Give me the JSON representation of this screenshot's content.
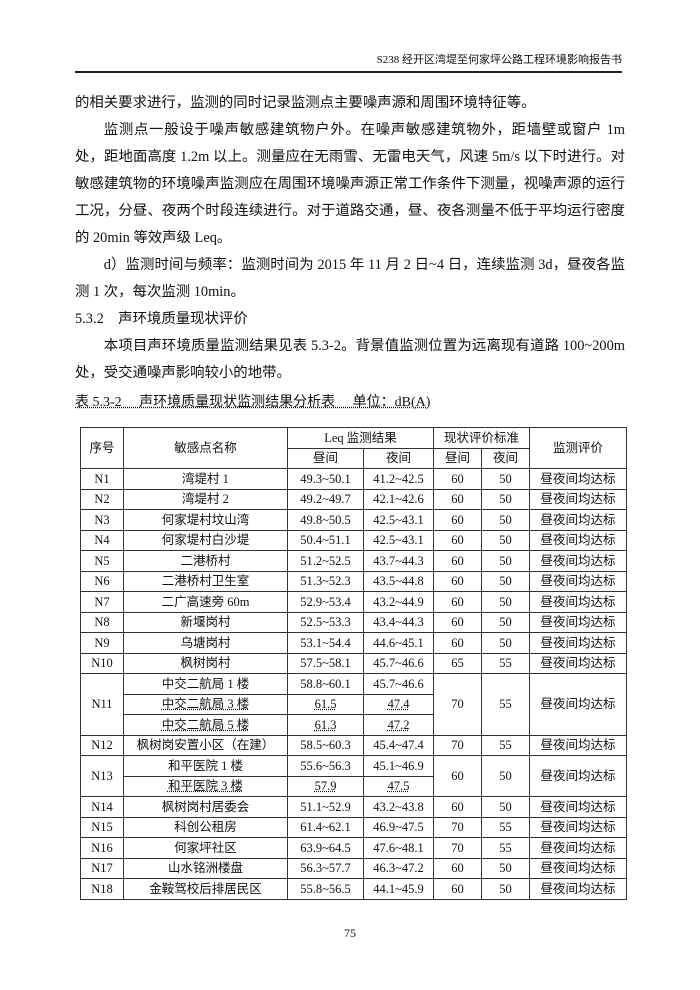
{
  "header": {
    "title": "S238 经开区湾堤至何家坪公路工程环境影响报告书"
  },
  "paragraphs": [
    "的相关要求进行，监测的同时记录监测点主要噪声源和周围环境特征等。",
    "监测点一般设于噪声敏感建筑物户外。在噪声敏感建筑物外，距墙壁或窗户 1m 处，距地面高度 1.2m 以上。测量应在无雨雪、无雷电天气，风速 5m/s 以下时进行。对敏感建筑物的环境噪声监测应在周围环境噪声源正常工作条件下测量，视噪声源的运行工况，分昼、夜两个时段连续进行。对于道路交通，昼、夜各测量不低于平均运行密度的 20min 等效声级 Leq。",
    "d）监测时间与频率：监测时间为 2015 年 11 月 2 日~4 日，连续监测 3d，昼夜各监测 1 次，每次监测 10min。",
    "本项目声环境质量监测结果见表 5.3-2。背景值监测位置为远离现有道路 100~200m 处，受交通噪声影响较小的地带。"
  ],
  "section_heading": "5.3.2　声环境质量现状评价",
  "table": {
    "caption": "表 5.3-2　 声环境质量现状监测结果分析表　 单位：dB(A)",
    "headers": {
      "no": "序号",
      "name": "敏感点名称",
      "leq": "Leq 监测结果",
      "std": "现状评价标准",
      "eval": "监测评价",
      "day": "昼间",
      "night": "夜间"
    },
    "rows": [
      {
        "id": "N1",
        "sub": [
          {
            "name": "湾堤村 1",
            "day": "49.3~50.1",
            "night": "41.2~42.5"
          }
        ],
        "std_day": "60",
        "std_night": "50",
        "eval": "昼夜间均达标"
      },
      {
        "id": "N2",
        "sub": [
          {
            "name": "湾堤村 2",
            "day": "49.2~49.7",
            "night": "42.1~42.6"
          }
        ],
        "std_day": "60",
        "std_night": "50",
        "eval": "昼夜间均达标"
      },
      {
        "id": "N3",
        "sub": [
          {
            "name": "何家堤村坟山湾",
            "day": "49.8~50.5",
            "night": "42.5~43.1"
          }
        ],
        "std_day": "60",
        "std_night": "50",
        "eval": "昼夜间均达标"
      },
      {
        "id": "N4",
        "sub": [
          {
            "name": "何家堤村白沙堤",
            "day": "50.4~51.1",
            "night": "42.5~43.1"
          }
        ],
        "std_day": "60",
        "std_night": "50",
        "eval": "昼夜间均达标"
      },
      {
        "id": "N5",
        "sub": [
          {
            "name": "二港桥村",
            "day": "51.2~52.5",
            "night": "43.7~44.3"
          }
        ],
        "std_day": "60",
        "std_night": "50",
        "eval": "昼夜间均达标"
      },
      {
        "id": "N6",
        "sub": [
          {
            "name": "二港桥村卫生室",
            "day": "51.3~52.3",
            "night": "43.5~44.8"
          }
        ],
        "std_day": "60",
        "std_night": "50",
        "eval": "昼夜间均达标"
      },
      {
        "id": "N7",
        "sub": [
          {
            "name": "二广高速旁 60m",
            "day": "52.9~53.4",
            "night": "43.2~44.9"
          }
        ],
        "std_day": "60",
        "std_night": "50",
        "eval": "昼夜间均达标"
      },
      {
        "id": "N8",
        "sub": [
          {
            "name": "新堰岗村",
            "day": "52.5~53.3",
            "night": "43.4~44.3"
          }
        ],
        "std_day": "60",
        "std_night": "50",
        "eval": "昼夜间均达标"
      },
      {
        "id": "N9",
        "sub": [
          {
            "name": "乌塘岗村",
            "day": "53.1~54.4",
            "night": "44.6~45.1"
          }
        ],
        "std_day": "60",
        "std_night": "50",
        "eval": "昼夜间均达标"
      },
      {
        "id": "N10",
        "sub": [
          {
            "name": "枫树岗村",
            "day": "57.5~58.1",
            "night": "45.7~46.6"
          }
        ],
        "std_day": "65",
        "std_night": "55",
        "eval": "昼夜间均达标"
      },
      {
        "id": "N11",
        "sub": [
          {
            "name": "中交二航局 1 楼",
            "day": "58.8~60.1",
            "night": "45.7~46.6"
          },
          {
            "name": "中交二航局 3 楼",
            "day": "61.5",
            "night": "47.4",
            "underline": true
          },
          {
            "name": "中交二航局 5 楼",
            "day": "61.3",
            "night": "47.2",
            "underline": true
          }
        ],
        "std_day": "70",
        "std_night": "55",
        "eval": "昼夜间均达标"
      },
      {
        "id": "N12",
        "sub": [
          {
            "name": "枫树岗安置小区（在建）",
            "day": "58.5~60.3",
            "night": "45.4~47.4"
          }
        ],
        "std_day": "70",
        "std_night": "55",
        "eval": "昼夜间均达标"
      },
      {
        "id": "N13",
        "sub": [
          {
            "name": "和平医院 1 楼",
            "day": "55.6~56.3",
            "night": "45.1~46.9"
          },
          {
            "name": "和平医院 3 楼",
            "day": "57.9",
            "night": "47.5",
            "underline": true
          }
        ],
        "std_day": "60",
        "std_night": "50",
        "eval": "昼夜间均达标"
      },
      {
        "id": "N14",
        "sub": [
          {
            "name": "枫树岗村居委会",
            "day": "51.1~52.9",
            "night": "43.2~43.8"
          }
        ],
        "std_day": "60",
        "std_night": "50",
        "eval": "昼夜间均达标"
      },
      {
        "id": "N15",
        "sub": [
          {
            "name": "科创公租房",
            "day": "61.4~62.1",
            "night": "46.9~47.5"
          }
        ],
        "std_day": "70",
        "std_night": "55",
        "eval": "昼夜间均达标"
      },
      {
        "id": "N16",
        "sub": [
          {
            "name": "何家坪社区",
            "day": "63.9~64.5",
            "night": "47.6~48.1"
          }
        ],
        "std_day": "70",
        "std_night": "55",
        "eval": "昼夜间均达标"
      },
      {
        "id": "N17",
        "sub": [
          {
            "name": "山水铭洲楼盘",
            "day": "56.3~57.7",
            "night": "46.3~47.2"
          }
        ],
        "std_day": "60",
        "std_night": "50",
        "eval": "昼夜间均达标"
      },
      {
        "id": "N18",
        "sub": [
          {
            "name": "金鞍驾校后排居民区",
            "day": "55.8~56.5",
            "night": "44.1~45.9"
          }
        ],
        "std_day": "60",
        "std_night": "50",
        "eval": "昼夜间均达标"
      }
    ]
  },
  "page_number": "75"
}
